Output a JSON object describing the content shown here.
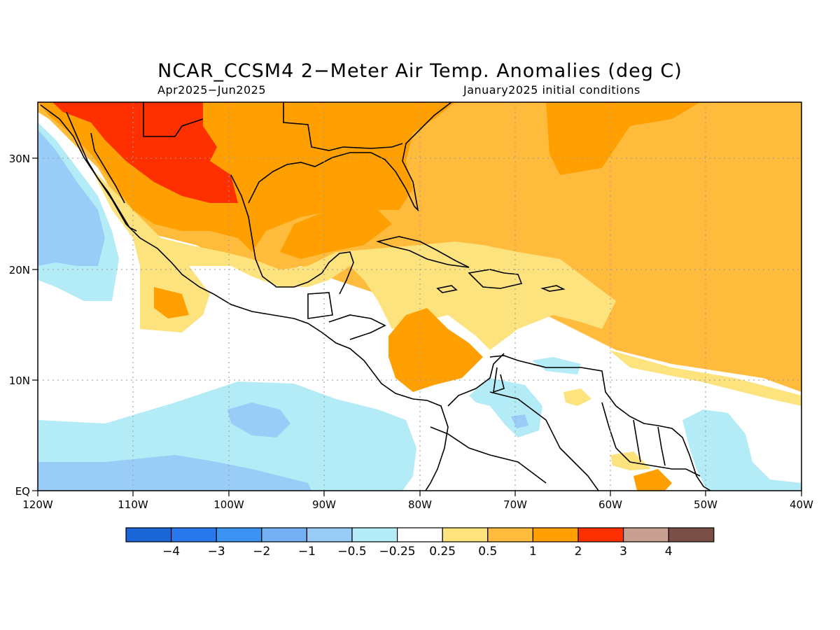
{
  "title": "NCAR_CCSM4 2−Meter Air Temp. Anomalies (deg C)",
  "period": "Apr2025−Jun2025",
  "init": "January2025 initial conditions",
  "lat_labels": [
    "30N",
    "20N",
    "10N",
    "EQ"
  ],
  "lat_values": [
    30,
    20,
    10,
    0
  ],
  "lon_labels": [
    "120W",
    "110W",
    "100W",
    "90W",
    "80W",
    "70W",
    "60W",
    "50W",
    "40W"
  ],
  "lon_values": [
    -120,
    -110,
    -100,
    -90,
    -80,
    -70,
    -60,
    -50,
    -40
  ],
  "extent": {
    "lon": [
      -120,
      -40
    ],
    "lat": [
      0,
      35
    ]
  },
  "colorbar": {
    "colors": [
      "#1a66d6",
      "#2a78ee",
      "#3c93f4",
      "#74b1f2",
      "#99ccf7",
      "#b3ecf7",
      "#ffffff",
      "#fde37d",
      "#ffbb3c",
      "#ffa000",
      "#ff3000",
      "#c8a092",
      "#7a5046"
    ],
    "labels": [
      "−4",
      "−3",
      "−2",
      "−1",
      "−0.5",
      "−0.25",
      "0.25",
      "0.5",
      "1",
      "2",
      "3",
      "4"
    ]
  }
}
